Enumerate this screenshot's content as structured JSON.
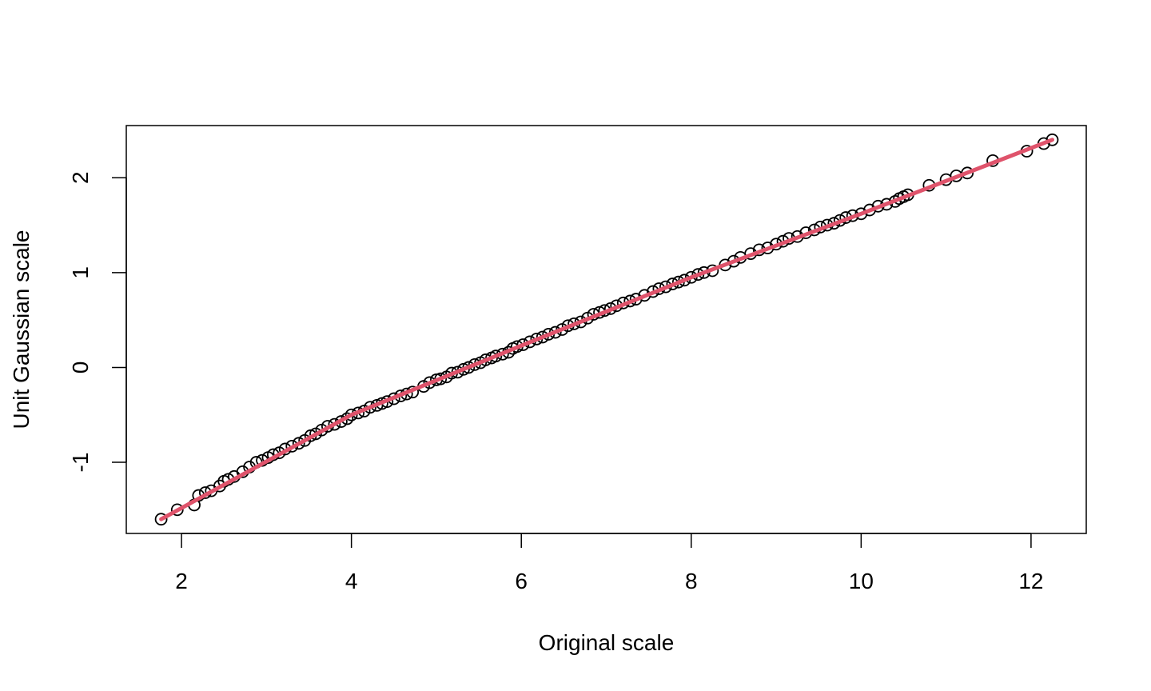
{
  "chart_data": {
    "type": "scatter",
    "title": "",
    "xlabel": "Original scale",
    "ylabel": "Unit Gaussian scale",
    "xlim": [
      1.35,
      12.65
    ],
    "ylim": [
      -1.75,
      2.55
    ],
    "x_ticks": [
      2,
      4,
      6,
      8,
      10,
      12
    ],
    "y_ticks": [
      -1,
      0,
      1,
      2
    ],
    "x_tick_labels": [
      "2",
      "4",
      "6",
      "8",
      "10",
      "12"
    ],
    "y_tick_labels": [
      "-1",
      "0",
      "1",
      "2"
    ],
    "grid": false,
    "legend": "none",
    "colors": {
      "points": "#000000",
      "line": "#DF536B",
      "axes": "#000000"
    },
    "points": {
      "x": [
        1.76,
        1.95,
        2.15,
        2.2,
        2.28,
        2.35,
        2.45,
        2.5,
        2.55,
        2.62,
        2.72,
        2.8,
        2.88,
        2.95,
        3.02,
        3.08,
        3.15,
        3.22,
        3.3,
        3.38,
        3.45,
        3.52,
        3.58,
        3.65,
        3.72,
        3.8,
        3.88,
        3.95,
        4.0,
        4.08,
        4.15,
        4.22,
        4.3,
        4.36,
        4.42,
        4.5,
        4.58,
        4.65,
        4.72,
        4.85,
        4.92,
        5.0,
        5.05,
        5.12,
        5.18,
        5.25,
        5.32,
        5.38,
        5.45,
        5.52,
        5.58,
        5.65,
        5.7,
        5.78,
        5.85,
        5.9,
        5.95,
        6.02,
        6.1,
        6.18,
        6.25,
        6.32,
        6.4,
        6.48,
        6.55,
        6.62,
        6.7,
        6.78,
        6.85,
        6.92,
        6.98,
        7.05,
        7.12,
        7.2,
        7.28,
        7.35,
        7.45,
        7.55,
        7.62,
        7.7,
        7.78,
        7.85,
        7.92,
        8.0,
        8.08,
        8.15,
        8.25,
        8.4,
        8.5,
        8.58,
        8.7,
        8.8,
        8.9,
        9.0,
        9.08,
        9.15,
        9.25,
        9.35,
        9.45,
        9.52,
        9.6,
        9.68,
        9.75,
        9.82,
        9.9,
        10.0,
        10.1,
        10.2,
        10.3,
        10.4,
        10.45,
        10.5,
        10.55,
        10.8,
        11.0,
        11.12,
        11.25,
        11.55,
        11.95,
        12.15,
        12.25
      ],
      "y": [
        -1.6,
        -1.5,
        -1.45,
        -1.35,
        -1.32,
        -1.3,
        -1.25,
        -1.2,
        -1.18,
        -1.15,
        -1.1,
        -1.05,
        -1.0,
        -0.98,
        -0.95,
        -0.92,
        -0.9,
        -0.86,
        -0.83,
        -0.8,
        -0.77,
        -0.72,
        -0.7,
        -0.66,
        -0.62,
        -0.6,
        -0.57,
        -0.54,
        -0.5,
        -0.48,
        -0.46,
        -0.42,
        -0.4,
        -0.38,
        -0.36,
        -0.33,
        -0.3,
        -0.28,
        -0.26,
        -0.2,
        -0.16,
        -0.13,
        -0.12,
        -0.1,
        -0.06,
        -0.05,
        -0.02,
        0.0,
        0.03,
        0.05,
        0.08,
        0.1,
        0.12,
        0.14,
        0.16,
        0.2,
        0.22,
        0.24,
        0.27,
        0.3,
        0.32,
        0.35,
        0.37,
        0.4,
        0.44,
        0.46,
        0.48,
        0.52,
        0.56,
        0.58,
        0.6,
        0.62,
        0.65,
        0.68,
        0.7,
        0.72,
        0.76,
        0.8,
        0.83,
        0.85,
        0.88,
        0.9,
        0.92,
        0.95,
        0.98,
        1.0,
        1.02,
        1.08,
        1.12,
        1.16,
        1.2,
        1.24,
        1.26,
        1.3,
        1.33,
        1.36,
        1.38,
        1.42,
        1.45,
        1.48,
        1.5,
        1.52,
        1.55,
        1.58,
        1.6,
        1.62,
        1.66,
        1.7,
        1.72,
        1.75,
        1.78,
        1.8,
        1.82,
        1.92,
        1.98,
        2.02,
        2.05,
        2.18,
        2.28,
        2.36,
        2.4
      ]
    },
    "fit_line": {
      "x": [
        1.76,
        4.0,
        6.0,
        8.0,
        10.0,
        12.25
      ],
      "y": [
        -1.6,
        -0.5,
        0.23,
        0.95,
        1.62,
        2.4
      ]
    }
  }
}
